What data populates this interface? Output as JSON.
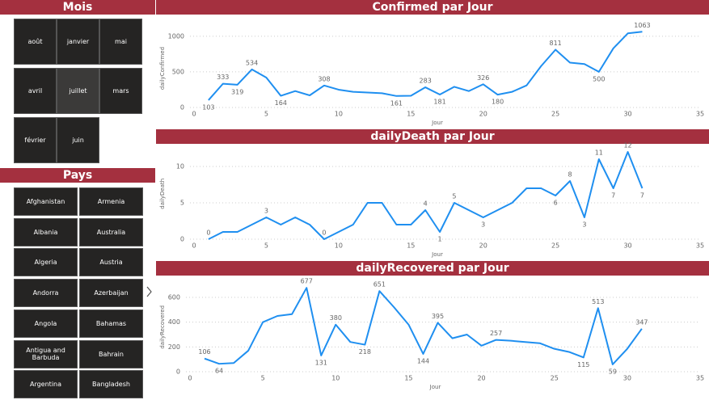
{
  "slicers": [
    {
      "title": "Mois",
      "items": [
        "août",
        "janvier",
        "mai",
        "avril",
        "juillet",
        "mars",
        "février",
        "juin"
      ],
      "selected": [
        4
      ]
    },
    {
      "title": "Pays",
      "items": [
        "Afghanistan",
        "Armenia",
        "Albania",
        "Australia",
        "Algeria",
        "Austria",
        "Andorra",
        "Azerbaijan",
        "Angola",
        "Bahamas",
        "Antigua and Barbuda",
        "Bahrain",
        "Argentina",
        "Bangladesh"
      ],
      "selected": []
    }
  ],
  "chart_data": [
    {
      "type": "line",
      "title": "Confirmed par Jour",
      "x_label": "Jour",
      "y_label": "dailyConfirmed",
      "color": "#1f8ff0",
      "x": [
        1,
        2,
        3,
        4,
        5,
        6,
        7,
        8,
        9,
        10,
        11,
        12,
        13,
        14,
        15,
        16,
        17,
        18,
        19,
        20,
        21,
        22,
        23,
        24,
        25,
        26,
        27,
        28,
        29,
        30,
        31
      ],
      "values": [
        103,
        333,
        319,
        534,
        420,
        164,
        230,
        170,
        308,
        250,
        220,
        210,
        200,
        161,
        165,
        283,
        181,
        290,
        230,
        326,
        180,
        220,
        310,
        580,
        811,
        630,
        610,
        500,
        830,
        1040,
        1063
      ],
      "labeled": [
        0,
        1,
        2,
        3,
        5,
        8,
        13,
        15,
        16,
        19,
        20,
        24,
        27,
        30
      ],
      "xlim": [
        0,
        35
      ],
      "xticks": [
        0,
        5,
        10,
        15,
        20,
        25,
        30,
        35
      ],
      "ylim": [
        0,
        1100
      ],
      "yticks": [
        0,
        500,
        1000
      ],
      "grid": true
    },
    {
      "type": "line",
      "title": "dailyDeath par Jour",
      "x_label": "Jour",
      "y_label": "dailyDeath",
      "color": "#1f8ff0",
      "x": [
        1,
        2,
        3,
        4,
        5,
        6,
        7,
        8,
        9,
        10,
        11,
        12,
        13,
        14,
        15,
        16,
        17,
        18,
        19,
        20,
        21,
        22,
        23,
        24,
        25,
        26,
        27,
        28,
        29,
        30,
        31
      ],
      "values": [
        0,
        1,
        1,
        2,
        3,
        2,
        3,
        2,
        0,
        1,
        2,
        5,
        5,
        2,
        2,
        4,
        1,
        5,
        4,
        3,
        4,
        5,
        7,
        7,
        6,
        8,
        3,
        11,
        7,
        12,
        7
      ],
      "labeled": [
        0,
        4,
        8,
        15,
        16,
        17,
        19,
        24,
        25,
        26,
        27,
        28,
        29,
        30
      ],
      "xlim": [
        0,
        35
      ],
      "xticks": [
        0,
        5,
        10,
        15,
        20,
        25,
        30,
        35
      ],
      "ylim": [
        0,
        12.5
      ],
      "yticks": [
        0,
        5,
        10
      ],
      "grid": true
    },
    {
      "type": "line",
      "title": "dailyRecovered par Jour",
      "x_label": "Jour",
      "y_label": "dailyRecovered",
      "color": "#1f8ff0",
      "x": [
        1,
        2,
        3,
        4,
        5,
        6,
        7,
        8,
        9,
        10,
        11,
        12,
        13,
        14,
        15,
        16,
        17,
        18,
        19,
        20,
        21,
        22,
        23,
        24,
        25,
        26,
        27,
        28,
        29,
        30,
        31
      ],
      "values": [
        106,
        64,
        70,
        170,
        400,
        450,
        465,
        677,
        131,
        380,
        240,
        218,
        651,
        520,
        380,
        144,
        395,
        270,
        300,
        210,
        257,
        250,
        240,
        230,
        185,
        160,
        115,
        513,
        59,
        185,
        347
      ],
      "labeled": [
        0,
        1,
        7,
        8,
        9,
        11,
        12,
        15,
        16,
        20,
        26,
        27,
        28,
        30
      ],
      "xlim": [
        0,
        35
      ],
      "xticks": [
        0,
        5,
        10,
        15,
        20,
        25,
        30,
        35
      ],
      "ylim": [
        0,
        720
      ],
      "yticks": [
        0,
        200,
        400,
        600
      ],
      "grid": true
    }
  ]
}
